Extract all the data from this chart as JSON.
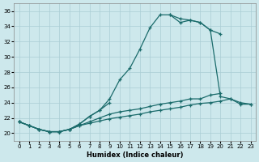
{
  "bg_color": "#cde8ec",
  "grid_color": "#aacdd4",
  "line_color": "#1a6b6b",
  "xlabel": "Humidex (Indice chaleur)",
  "xlim": [
    -0.5,
    23.5
  ],
  "ylim": [
    19.0,
    37.0
  ],
  "yticks": [
    20,
    22,
    24,
    26,
    28,
    30,
    32,
    34,
    36
  ],
  "xticks": [
    0,
    1,
    2,
    3,
    4,
    5,
    6,
    7,
    8,
    9,
    10,
    11,
    12,
    13,
    14,
    15,
    16,
    17,
    18,
    19,
    20,
    21,
    22,
    23
  ],
  "curve1_x": [
    0,
    1,
    2,
    3,
    4,
    5,
    6,
    7,
    8,
    9,
    10,
    11,
    12,
    13,
    14,
    15,
    16,
    17,
    18,
    19,
    20
  ],
  "curve1_y": [
    21.5,
    21.0,
    20.5,
    20.2,
    20.2,
    20.5,
    21.2,
    22.2,
    23.0,
    24.5,
    27.0,
    28.5,
    31.0,
    33.8,
    35.5,
    35.5,
    35.0,
    34.8,
    34.5,
    33.5,
    33.0
  ],
  "curve2a_x": [
    0,
    1,
    2,
    3,
    4,
    5,
    6,
    7,
    8,
    9
  ],
  "curve2a_y": [
    21.5,
    21.0,
    20.5,
    20.2,
    20.2,
    20.5,
    21.2,
    22.2,
    23.0,
    24.0
  ],
  "curve2b_x": [
    15,
    16,
    17,
    18,
    19,
    20,
    21,
    22,
    23
  ],
  "curve2b_y": [
    35.5,
    34.5,
    34.8,
    34.5,
    33.5,
    24.8,
    24.5,
    24.0,
    23.8
  ],
  "curve3_x": [
    0,
    1,
    2,
    3,
    4,
    5,
    6,
    7,
    8,
    9,
    10,
    11,
    12,
    13,
    14,
    15,
    16,
    17,
    18,
    19,
    20
  ],
  "curve3_y": [
    21.5,
    21.0,
    20.5,
    20.2,
    20.2,
    20.5,
    21.0,
    21.5,
    22.0,
    22.5,
    22.8,
    23.0,
    23.2,
    23.5,
    23.8,
    24.0,
    24.2,
    24.5,
    24.5,
    25.0,
    25.2
  ],
  "curve4_x": [
    0,
    1,
    2,
    3,
    4,
    5,
    6,
    7,
    8,
    9,
    10,
    11,
    12,
    13,
    14,
    15,
    16,
    17,
    18,
    19,
    20,
    21,
    22,
    23
  ],
  "curve4_y": [
    21.5,
    21.0,
    20.5,
    20.2,
    20.2,
    20.5,
    21.0,
    21.3,
    21.6,
    21.9,
    22.1,
    22.3,
    22.5,
    22.8,
    23.0,
    23.2,
    23.4,
    23.7,
    23.9,
    24.0,
    24.2,
    24.5,
    23.8,
    23.8
  ]
}
